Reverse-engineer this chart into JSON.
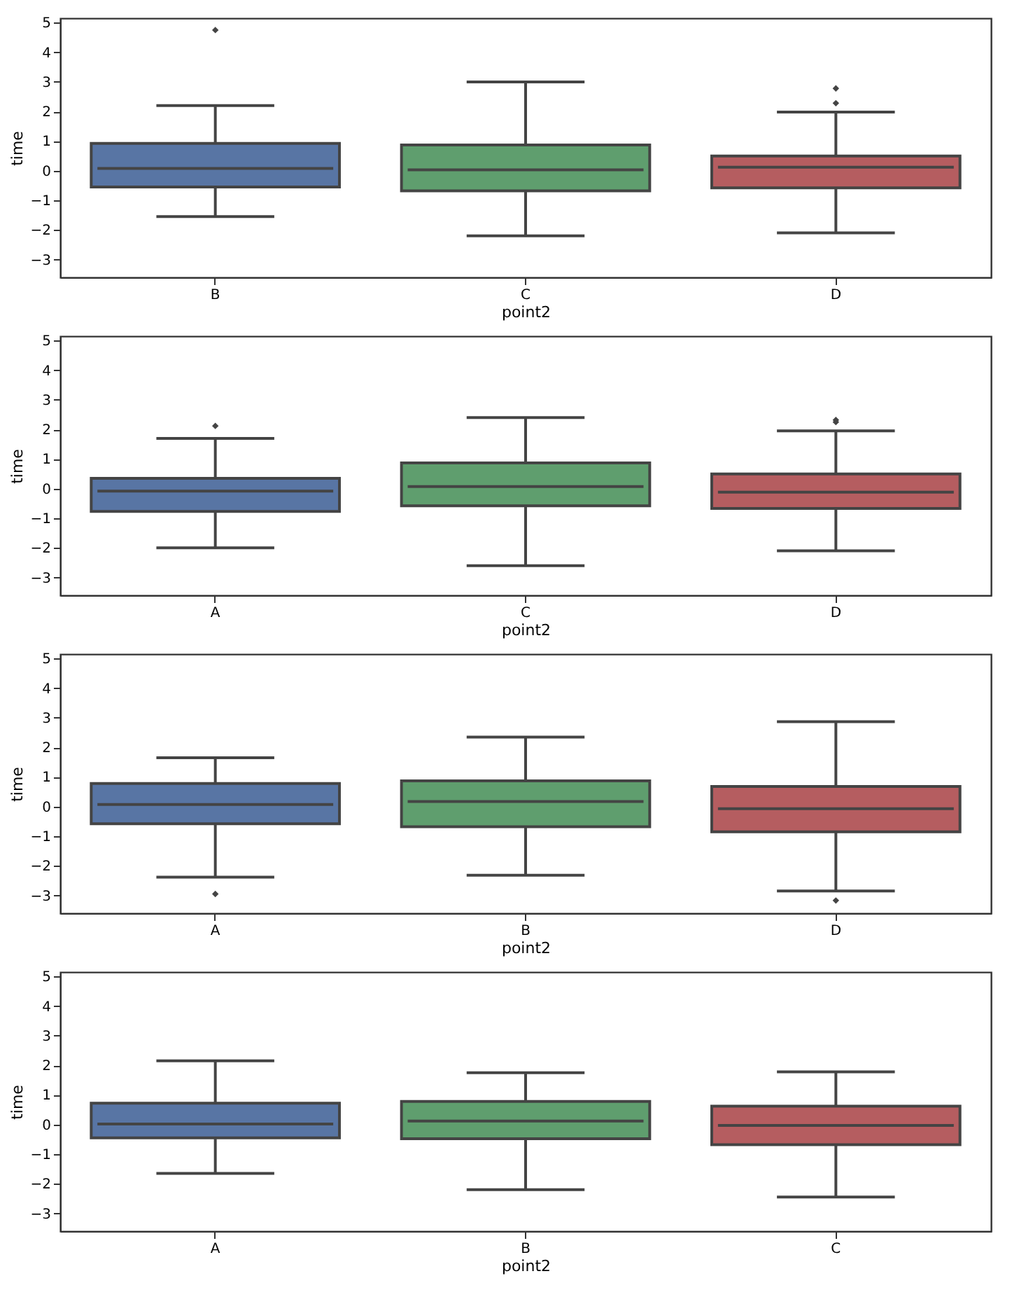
{
  "chart_data": [
    {
      "type": "box",
      "categories": [
        "B",
        "C",
        "D"
      ],
      "xlabel": "point2",
      "ylabel": "time",
      "colors": [
        "#5875a4",
        "#5f9e6e",
        "#b55d60"
      ],
      "ylim": [
        -3.6,
        5.15
      ],
      "yticks": [
        -3,
        -2,
        -1,
        0,
        1,
        2,
        3,
        4,
        5
      ],
      "grid": false,
      "boxes": [
        {
          "low": -1.55,
          "q1": -0.55,
          "median": 0.08,
          "q3": 0.92,
          "high": 2.2,
          "outliers": [
            4.75
          ]
        },
        {
          "low": -2.2,
          "q1": -0.68,
          "median": 0.03,
          "q3": 0.87,
          "high": 3.0
        },
        {
          "low": -2.1,
          "q1": -0.58,
          "median": 0.12,
          "q3": 0.5,
          "high": 1.98,
          "outliers": [
            2.28,
            2.78
          ]
        }
      ]
    },
    {
      "type": "box",
      "categories": [
        "A",
        "C",
        "D"
      ],
      "xlabel": "point2",
      "ylabel": "time",
      "colors": [
        "#5875a4",
        "#5f9e6e",
        "#b55d60"
      ],
      "ylim": [
        -3.6,
        5.15
      ],
      "yticks": [
        -3,
        -2,
        -1,
        0,
        1,
        2,
        3,
        4,
        5
      ],
      "grid": false,
      "boxes": [
        {
          "low": -2.0,
          "q1": -0.77,
          "median": -0.08,
          "q3": 0.35,
          "high": 1.7,
          "outliers": [
            2.12
          ]
        },
        {
          "low": -2.6,
          "q1": -0.58,
          "median": 0.07,
          "q3": 0.87,
          "high": 2.4
        },
        {
          "low": -2.1,
          "q1": -0.67,
          "median": -0.12,
          "q3": 0.5,
          "high": 1.95,
          "outliers": [
            2.25,
            2.32
          ]
        }
      ]
    },
    {
      "type": "box",
      "categories": [
        "A",
        "B",
        "D"
      ],
      "xlabel": "point2",
      "ylabel": "time",
      "colors": [
        "#5875a4",
        "#5f9e6e",
        "#b55d60"
      ],
      "ylim": [
        -3.6,
        5.15
      ],
      "yticks": [
        -3,
        -2,
        -1,
        0,
        1,
        2,
        3,
        4,
        5
      ],
      "grid": false,
      "boxes": [
        {
          "low": -2.38,
          "q1": -0.58,
          "median": 0.07,
          "q3": 0.78,
          "high": 1.65,
          "outliers": [
            -2.95
          ]
        },
        {
          "low": -2.32,
          "q1": -0.68,
          "median": 0.17,
          "q3": 0.87,
          "high": 2.35
        },
        {
          "low": -2.85,
          "q1": -0.85,
          "median": -0.07,
          "q3": 0.68,
          "high": 2.87,
          "outliers": [
            -3.17
          ]
        }
      ]
    },
    {
      "type": "box",
      "categories": [
        "A",
        "B",
        "C"
      ],
      "xlabel": "point2",
      "ylabel": "time",
      "colors": [
        "#5875a4",
        "#5f9e6e",
        "#b55d60"
      ],
      "ylim": [
        -3.6,
        5.15
      ],
      "yticks": [
        -3,
        -2,
        -1,
        0,
        1,
        2,
        3,
        4,
        5
      ],
      "grid": false,
      "boxes": [
        {
          "low": -1.65,
          "q1": -0.45,
          "median": 0.02,
          "q3": 0.72,
          "high": 2.15
        },
        {
          "low": -2.2,
          "q1": -0.48,
          "median": 0.12,
          "q3": 0.78,
          "high": 1.75
        },
        {
          "low": -2.45,
          "q1": -0.68,
          "median": -0.03,
          "q3": 0.62,
          "high": 1.78
        }
      ]
    }
  ]
}
